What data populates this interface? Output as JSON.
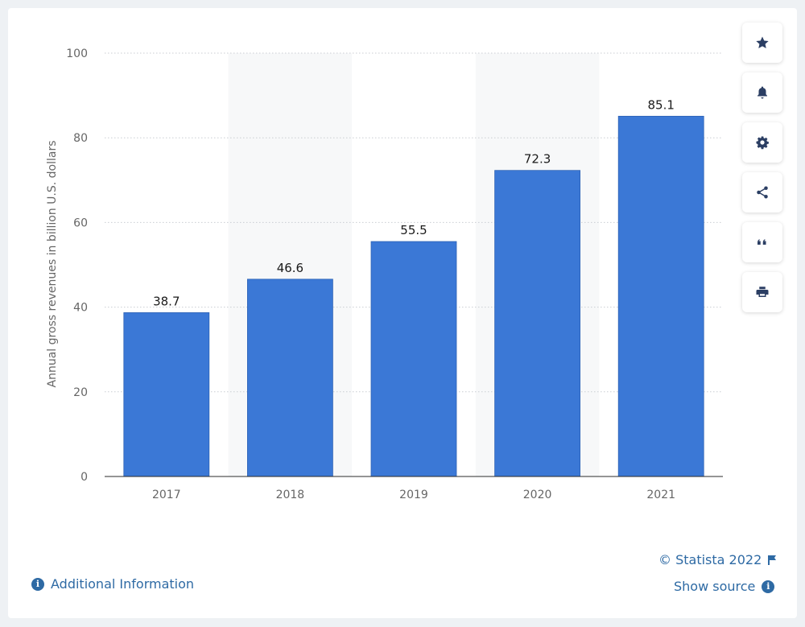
{
  "chart_data": {
    "type": "bar",
    "categories": [
      "2017",
      "2018",
      "2019",
      "2020",
      "2021"
    ],
    "values": [
      38.7,
      46.6,
      55.5,
      72.3,
      85.1
    ],
    "data_labels": [
      "38.7",
      "46.6",
      "55.5",
      "72.3",
      "85.1"
    ],
    "ylabel": "Annual gross revenues in billion U.S. dollars",
    "xlabel": "",
    "ylim": [
      0,
      100
    ],
    "yticks": [
      "0",
      "20",
      "40",
      "60",
      "80",
      "100"
    ],
    "grid": true,
    "bar_color": "#3b78d6"
  },
  "toolbar": {
    "buttons": [
      "star-icon",
      "bell-icon",
      "gear-icon",
      "share-icon",
      "quote-icon",
      "print-icon"
    ]
  },
  "footer": {
    "copyright": "© Statista 2022",
    "show_source": "Show source",
    "additional_info": "Additional Information"
  }
}
